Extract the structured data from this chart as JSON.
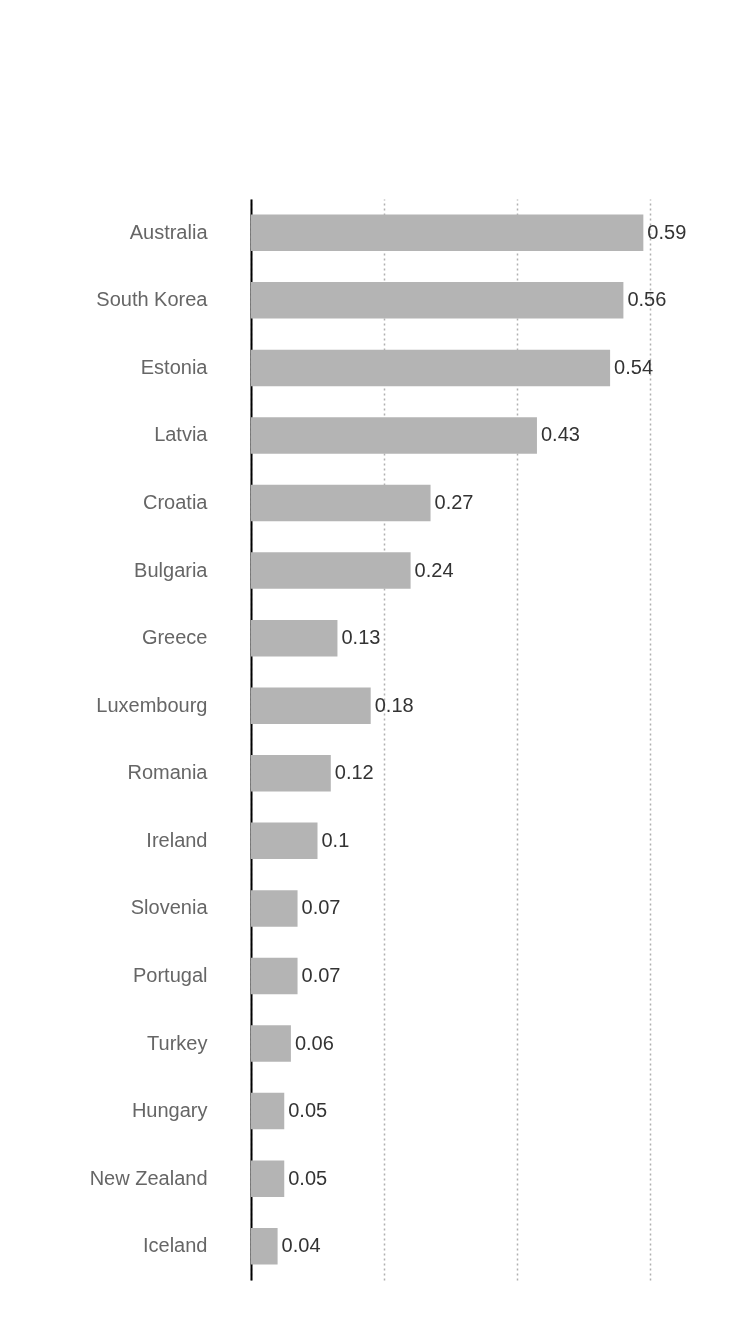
{
  "chart_data": {
    "type": "bar",
    "orientation": "horizontal",
    "categories": [
      "Australia",
      "South Korea",
      "Estonia",
      "Latvia",
      "Croatia",
      "Bulgaria",
      "Greece",
      "Luxembourg",
      "Romania",
      "Ireland",
      "Slovenia",
      "Portugal",
      "Turkey",
      "Hungary",
      "New Zealand",
      "Iceland"
    ],
    "values": [
      0.59,
      0.56,
      0.54,
      0.43,
      0.27,
      0.24,
      0.13,
      0.18,
      0.12,
      0.1,
      0.07,
      0.07,
      0.06,
      0.05,
      0.05,
      0.04
    ],
    "color": "#b4b4b4",
    "xlim": [
      0,
      0.6
    ],
    "xticks": [
      {
        "value": 0,
        "label": null
      },
      {
        "value": 0.2,
        "label": null
      },
      {
        "value": 0.4,
        "label": null
      },
      {
        "value": 0.6,
        "label": null
      }
    ],
    "grid": "x",
    "tick_labels": "y",
    "data_labels": true
  }
}
